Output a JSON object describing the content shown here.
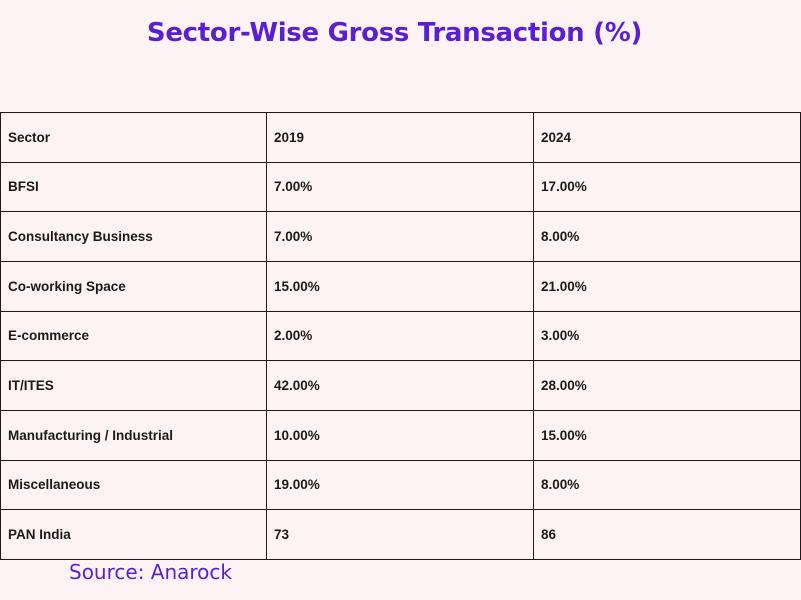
{
  "chart_data": {
    "type": "table",
    "title": "Sector-Wise Gross Transaction (%)",
    "columns": [
      "Sector",
      "2019",
      "2024"
    ],
    "rows": [
      [
        "BFSI",
        "7.00%",
        "17.00%"
      ],
      [
        "Consultancy Business",
        "7.00%",
        "8.00%"
      ],
      [
        "Co-working Space",
        "15.00%",
        "21.00%"
      ],
      [
        "E-commerce",
        "2.00%",
        "3.00%"
      ],
      [
        "IT/ITES",
        "42.00%",
        "28.00%"
      ],
      [
        "Manufacturing / Industrial",
        "10.00%",
        "15.00%"
      ],
      [
        "Miscellaneous",
        "19.00%",
        "8.00%"
      ],
      [
        "PAN India",
        "73",
        "86"
      ]
    ],
    "source": "Source: Anarock"
  },
  "colors": {
    "background": "#fdf3f5",
    "accent": "#5a1fd1",
    "border": "#1a1a1a"
  }
}
